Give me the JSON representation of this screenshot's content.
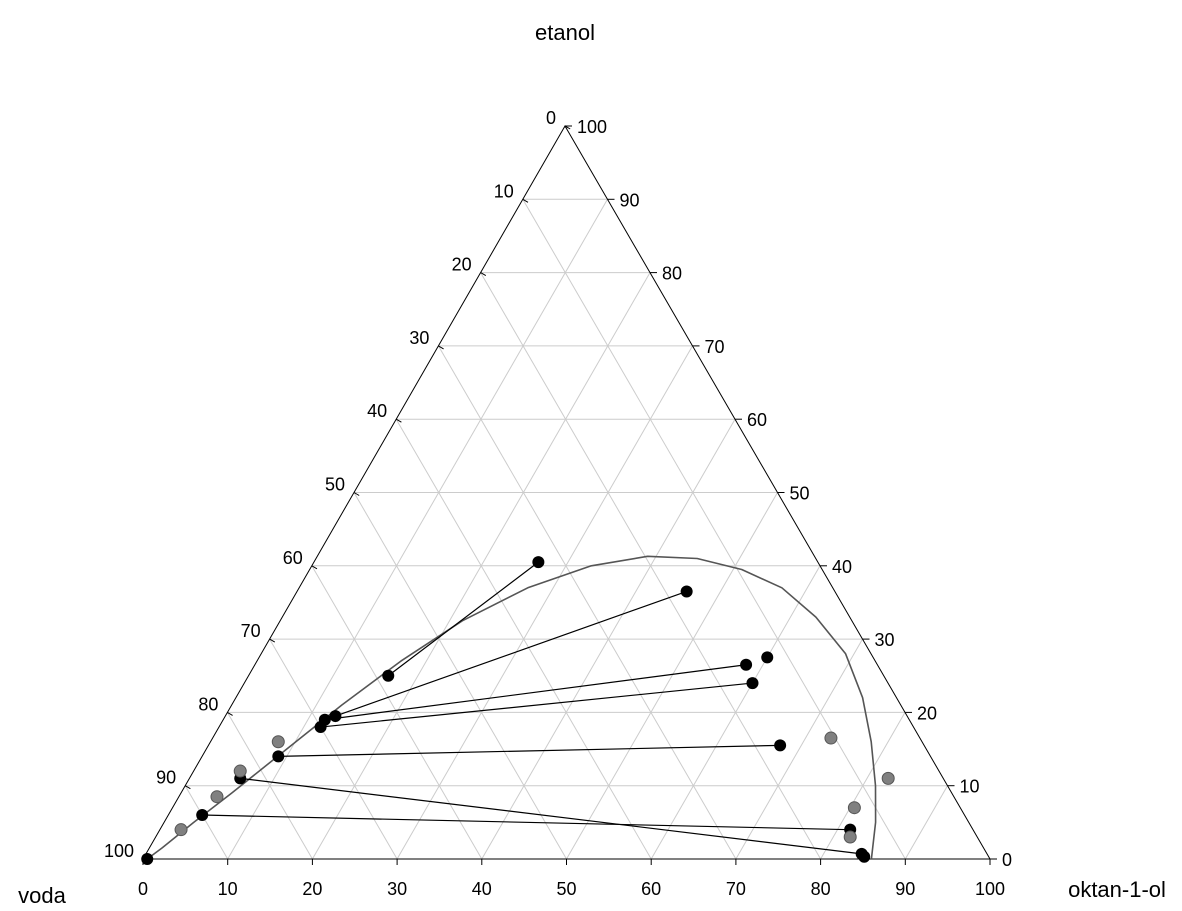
{
  "chart_data": {
    "type": "ternary",
    "components": {
      "top": "etanol",
      "left": "voda",
      "right": "oktan-1-ol"
    },
    "axes": {
      "bottom_ticks": [
        "0",
        "10",
        "20",
        "30",
        "40",
        "50",
        "60",
        "70",
        "80",
        "90",
        "100"
      ],
      "left_ticks": [
        "0",
        "10",
        "20",
        "30",
        "40",
        "50",
        "60",
        "70",
        "80",
        "90",
        "100"
      ],
      "right_ticks": [
        "0",
        "10",
        "20",
        "30",
        "40",
        "50",
        "60",
        "70",
        "80",
        "90",
        "100"
      ],
      "grid": true,
      "grid_step": 10
    },
    "binodal_curve": [
      [
        0.5,
        0.0
      ],
      [
        1.5,
        1.5
      ],
      [
        3.5,
        5.0
      ],
      [
        6.0,
        9.0
      ],
      [
        9.5,
        15.0
      ],
      [
        13.0,
        21.0
      ],
      [
        17.0,
        27.0
      ],
      [
        21.5,
        32.5
      ],
      [
        27.0,
        37.0
      ],
      [
        33.0,
        40.0
      ],
      [
        39.0,
        41.3
      ],
      [
        45.0,
        41.0
      ],
      [
        51.0,
        39.5
      ],
      [
        57.0,
        37.0
      ],
      [
        63.0,
        33.0
      ],
      [
        69.0,
        28.0
      ],
      [
        74.0,
        22.0
      ],
      [
        78.0,
        16.0
      ],
      [
        81.5,
        10.0
      ],
      [
        84.0,
        5.0
      ],
      [
        86.0,
        0.0
      ]
    ],
    "tie_lines": [
      {
        "water_rich": [
          6.0,
          11.0
        ],
        "organic_rich": [
          84.5,
          0.7
        ]
      },
      {
        "water_rich": [
          4.0,
          6.0
        ],
        "organic_rich": [
          81.5,
          4.0
        ]
      },
      {
        "water_rich": [
          9.0,
          14.0
        ],
        "organic_rich": [
          67.5,
          15.5
        ]
      },
      {
        "water_rich": [
          12.0,
          18.0
        ],
        "organic_rich": [
          60.0,
          24.0
        ]
      },
      {
        "water_rich": [
          12.0,
          19.0
        ],
        "organic_rich": [
          58.0,
          26.5
        ]
      },
      {
        "water_rich": [
          13.0,
          19.5
        ],
        "organic_rich": [
          46.0,
          36.5
        ]
      },
      {
        "water_rich": [
          16.5,
          25.0
        ],
        "organic_rich": [
          26.5,
          40.5
        ]
      }
    ],
    "extra_black_points": [
      [
        0.5,
        0.0
      ],
      [
        85.0,
        0.3
      ],
      [
        60.0,
        27.5
      ]
    ],
    "grey_points": [
      [
        2.5,
        4.0
      ],
      [
        4.5,
        8.5
      ],
      [
        5.5,
        12.0
      ],
      [
        8.0,
        16.0
      ],
      [
        82.0,
        3.0
      ],
      [
        80.5,
        7.0
      ],
      [
        82.5,
        11.0
      ],
      [
        73.0,
        16.5
      ]
    ]
  }
}
